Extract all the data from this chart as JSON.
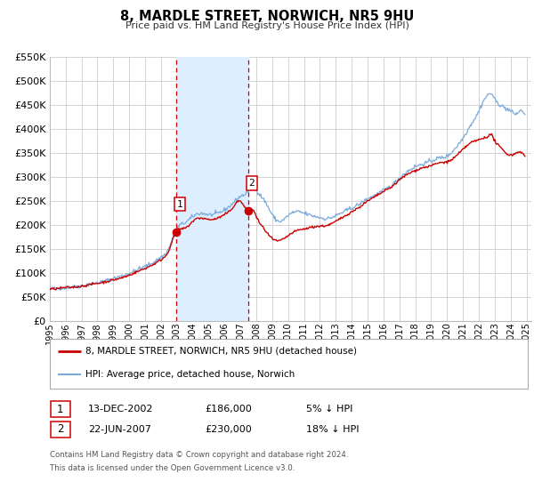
{
  "title": "8, MARDLE STREET, NORWICH, NR5 9HU",
  "subtitle": "Price paid vs. HM Land Registry's House Price Index (HPI)",
  "ylim": [
    0,
    550000
  ],
  "yticks": [
    0,
    50000,
    100000,
    150000,
    200000,
    250000,
    300000,
    350000,
    400000,
    450000,
    500000,
    550000
  ],
  "xlim_start": 1995.0,
  "xlim_end": 2025.3,
  "xtick_years": [
    1995,
    1996,
    1997,
    1998,
    1999,
    2000,
    2001,
    2002,
    2003,
    2004,
    2005,
    2006,
    2007,
    2008,
    2009,
    2010,
    2011,
    2012,
    2013,
    2014,
    2015,
    2016,
    2017,
    2018,
    2019,
    2020,
    2021,
    2022,
    2023,
    2024,
    2025
  ],
  "sale1_x": 2002.95,
  "sale1_y": 186000,
  "sale2_x": 2007.47,
  "sale2_y": 230000,
  "sale1_date": "13-DEC-2002",
  "sale1_price": "£186,000",
  "sale1_hpi": "5% ↓ HPI",
  "sale2_date": "22-JUN-2007",
  "sale2_price": "£230,000",
  "sale2_hpi": "18% ↓ HPI",
  "shade_x1": 2002.95,
  "shade_x2": 2007.47,
  "line1_color": "#cc0000",
  "line2_color": "#7aabdb",
  "shade_color": "#ddeeff",
  "vline_color": "#cc0000",
  "dot_color": "#cc0000",
  "grid_color": "#cccccc",
  "background_color": "#ffffff",
  "legend_line1": "8, MARDLE STREET, NORWICH, NR5 9HU (detached house)",
  "legend_line2": "HPI: Average price, detached house, Norwich",
  "footer1": "Contains HM Land Registry data © Crown copyright and database right 2024.",
  "footer2": "This data is licensed under the Open Government Licence v3.0."
}
